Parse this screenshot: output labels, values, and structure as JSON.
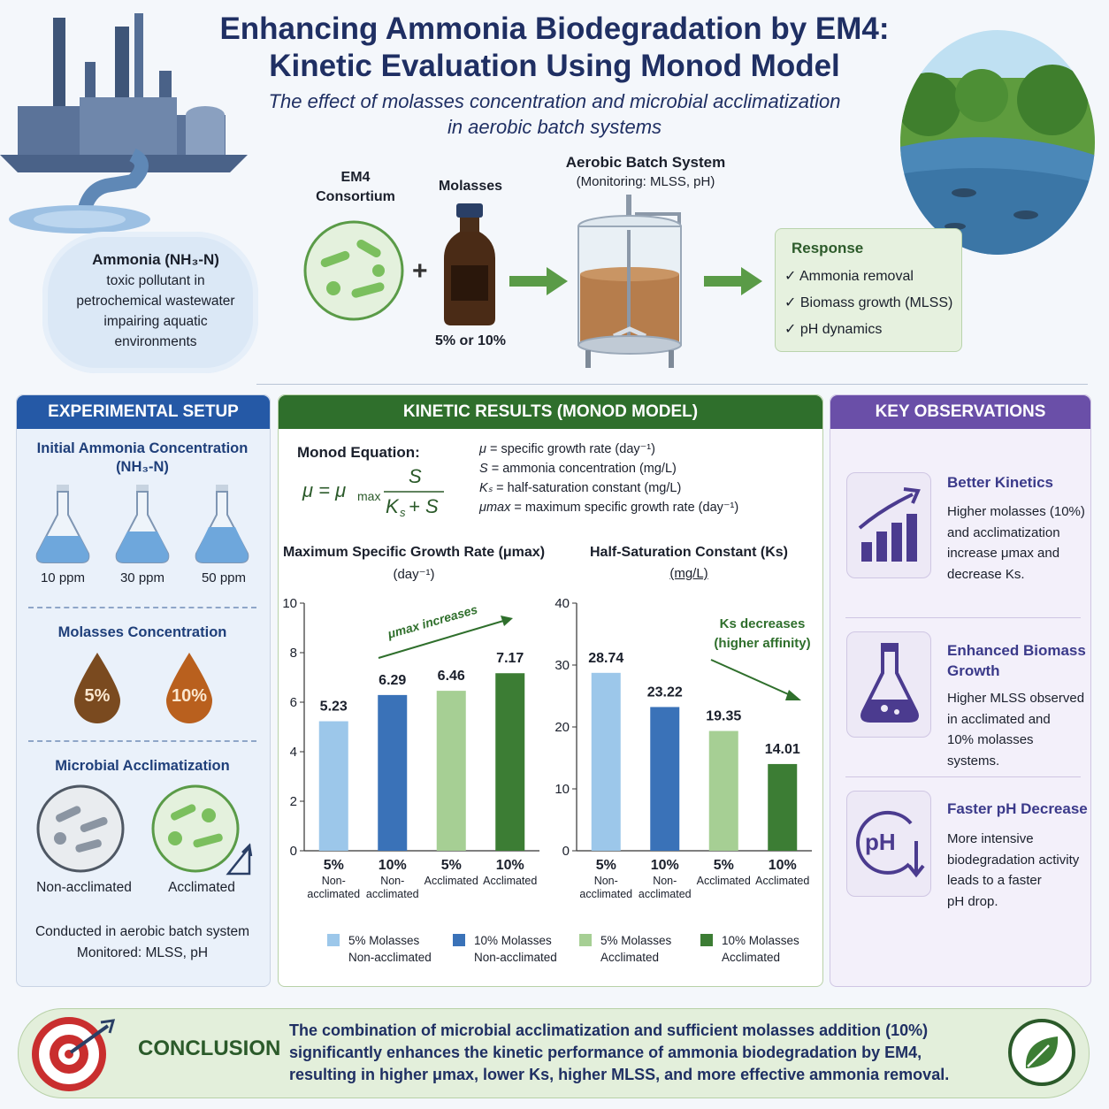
{
  "header": {
    "title_line1": "Enhancing Ammonia Biodegradation by EM4:",
    "title_line2": "Kinetic Evaluation Using Monod Model",
    "subtitle_line1": "The effect of molasses concentration and microbial acclimatization",
    "subtitle_line2": "in aerobic batch systems"
  },
  "pollutant": {
    "heading": "Ammonia (NH₃-N)",
    "line1": "toxic pollutant in",
    "line2": "petrochemical wastewater",
    "line3": "impairing aquatic",
    "line4": "environments"
  },
  "process": {
    "em4_line1": "EM4",
    "em4_line2": "Consortium",
    "plus": "+",
    "molasses": "Molasses",
    "molasses_dose": "5% or 10%",
    "batch_title": "Aerobic Batch System",
    "batch_sub": "(Monitoring: MLSS, pH)"
  },
  "response": {
    "heading": "Response",
    "items": [
      "Ammonia removal",
      "Biomass growth (MLSS)",
      "pH dynamics"
    ],
    "check": "✓"
  },
  "setup": {
    "header": "EXPERIMENTAL SETUP",
    "ammonia_title_line1": "Initial Ammonia Concentration",
    "ammonia_title_line2": "(NH₃-N)",
    "flasks": [
      "10 ppm",
      "30 ppm",
      "50 ppm"
    ],
    "molasses_title": "Molasses Concentration",
    "drops": [
      "5%",
      "10%"
    ],
    "accl_title": "Microbial Acclimatization",
    "accl_labels": [
      "Non-acclimated",
      "Acclimated"
    ],
    "footer_line1": "Conducted in aerobic batch system",
    "footer_line2": "Monitored: MLSS, pH"
  },
  "kinetic": {
    "header": "KINETIC RESULTS (MONOD MODEL)",
    "eq_label": "Monod Equation:",
    "definitions": [
      {
        "sym": "μ",
        "text": "= specific growth rate (day⁻¹)"
      },
      {
        "sym": "S",
        "text": "= ammonia concentration (mg/L)"
      },
      {
        "sym": "Kₛ",
        "text": "= half-saturation constant (mg/L)"
      },
      {
        "sym": "μmax",
        "text": "= maximum specific growth rate (day⁻¹)"
      }
    ],
    "legend": [
      {
        "line1": "5% Molasses",
        "line2": "Non-acclimated",
        "color": "#9cc7ea"
      },
      {
        "line1": "10% Molasses",
        "line2": "Non-acclimated",
        "color": "#3a72b8"
      },
      {
        "line1": "5% Molasses",
        "line2": "Acclimated",
        "color": "#a6cf94"
      },
      {
        "line1": "10% Molasses",
        "line2": "Acclimated",
        "color": "#3c7d34"
      }
    ]
  },
  "chart_data": [
    {
      "type": "bar",
      "title": "Maximum Specific Growth Rate (μmax)",
      "unit": "(day⁻¹)",
      "categories": [
        "5%",
        "10%",
        "5%",
        "10%"
      ],
      "category_sub": [
        "Non-\nacclimated",
        "Non-\nacclimated",
        "Acclimated",
        "Acclimated"
      ],
      "values": [
        5.23,
        6.29,
        6.46,
        7.17
      ],
      "labels": [
        "5.23",
        "6.29",
        "6.46",
        "7.17"
      ],
      "ylim": [
        0,
        10
      ],
      "yticks": [
        0,
        2,
        4,
        6,
        8,
        10
      ],
      "annotation": "μmax increases",
      "colors": [
        "#9cc7ea",
        "#3a72b8",
        "#a6cf94",
        "#3c7d34"
      ]
    },
    {
      "type": "bar",
      "title": "Half-Saturation Constant (Ks)",
      "unit": "(mg/L)",
      "categories": [
        "5%",
        "10%",
        "5%",
        "10%"
      ],
      "category_sub": [
        "Non-\nacclimated",
        "Non-\nacclimated",
        "Acclimated",
        "Acclimated"
      ],
      "values": [
        28.74,
        23.22,
        19.35,
        14.01
      ],
      "labels": [
        "28.74",
        "23.22",
        "19.35",
        "14.01"
      ],
      "ylim": [
        0,
        40
      ],
      "yticks": [
        0,
        10,
        20,
        30,
        40
      ],
      "annotation_line1": "Ks decreases",
      "annotation_line2": "(higher affinity)",
      "colors": [
        "#9cc7ea",
        "#3a72b8",
        "#a6cf94",
        "#3c7d34"
      ]
    }
  ],
  "observations": {
    "header": "KEY OBSERVATIONS",
    "items": [
      {
        "title": "Better Kinetics",
        "lines": [
          "Higher molasses (10%)",
          "and acclimatization",
          "increase μmax and",
          "decrease Ks."
        ],
        "icon": "bar-chart-icon"
      },
      {
        "title_line1": "Enhanced Biomass",
        "title_line2": "Growth",
        "lines": [
          "Higher MLSS observed",
          "in acclimated and",
          "10% molasses systems."
        ],
        "icon": "flask-icon"
      },
      {
        "title": "Faster pH Decrease",
        "lines": [
          "More intensive",
          "biodegradation activity",
          "leads to a faster",
          "pH drop."
        ],
        "icon": "ph-down-icon",
        "icon_text": "pH"
      }
    ]
  },
  "conclusion": {
    "label": "CONCLUSION",
    "line1": "The combination of microbial acclimatization and sufficient molasses addition (10%)",
    "line2": "significantly enhances the kinetic performance of ammonia biodegradation by EM4,",
    "line3": "resulting in higher μmax, lower Ks, higher MLSS, and more effective ammonia removal."
  },
  "colors": {
    "navy": "#1f2f63",
    "blue_header": "#2559a6",
    "green_header": "#2f6f2c",
    "purple_header": "#6a4fa8"
  }
}
